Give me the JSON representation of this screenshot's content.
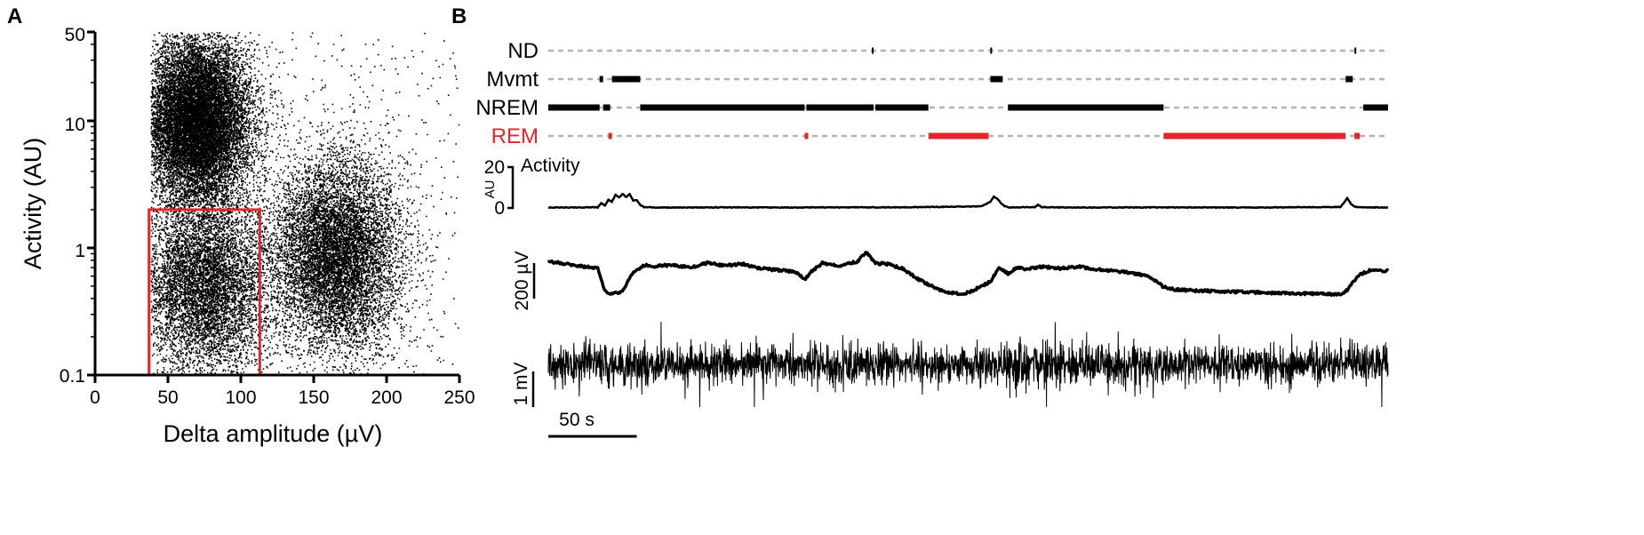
{
  "colors": {
    "ink": "#000000",
    "red": "#e3262b",
    "dash": "#b3b3b3"
  },
  "panel_a": {
    "label": "A",
    "chart_data": {
      "type": "scatter",
      "xlabel": "Delta amplitude (µV)",
      "ylabel": "Activity (AU)",
      "xlim": [
        0,
        250
      ],
      "ylim": [
        0.1,
        50
      ],
      "yscale": "log",
      "xticks": [
        0,
        50,
        100,
        150,
        200,
        250
      ],
      "yticks": [
        0.1,
        1,
        10,
        50
      ],
      "ytick_labels": [
        "0.1",
        "1",
        "10",
        "50"
      ],
      "clusters": [
        {
          "x_center": 70,
          "x_sd": 18,
          "log10y_center": 1.0,
          "log10y_sd": 0.32,
          "weight": 0.48
        },
        {
          "x_center": 165,
          "x_sd": 22,
          "log10y_center": -0.05,
          "log10y_sd": 0.38,
          "weight": 0.3
        },
        {
          "x_center": 75,
          "x_sd": 22,
          "log10y_center": -0.3,
          "log10y_sd": 0.35,
          "weight": 0.22
        }
      ],
      "selection_box": {
        "x": [
          37,
          113
        ],
        "y": [
          0.1,
          2
        ]
      }
    }
  },
  "panel_b": {
    "label": "B",
    "chart_data": {
      "type": "line",
      "duration_s": 475,
      "hypnogram": [
        {
          "name": "ND",
          "bouts": [
            [
              183,
              184
            ],
            [
              250,
              251
            ],
            [
              456,
              457
            ]
          ]
        },
        {
          "name": "Mvmt",
          "bouts": [
            [
              29,
              31
            ],
            [
              36,
              52
            ],
            [
              250,
              257
            ],
            [
              451,
              455
            ]
          ]
        },
        {
          "name": "NREM",
          "bouts": [
            [
              0,
              29
            ],
            [
              31,
              35
            ],
            [
              52,
              145
            ],
            [
              146,
              184
            ],
            [
              185,
              215
            ],
            [
              260,
              348
            ],
            [
              461,
              475
            ]
          ]
        },
        {
          "name": "REM",
          "bouts": [
            [
              34,
              36
            ],
            [
              145,
              147
            ],
            [
              215,
              249
            ],
            [
              348,
              451
            ],
            [
              456,
              459
            ]
          ]
        }
      ],
      "activity": {
        "label": "Activity",
        "unit": "AU",
        "scale_max_label": "20",
        "scale_zero_label": "0",
        "ylim": [
          0,
          20
        ],
        "t": [
          0,
          28,
          30,
          32,
          34,
          36,
          38,
          40,
          42,
          44,
          46,
          48,
          50,
          52,
          54,
          60,
          100,
          145,
          150,
          200,
          245,
          250,
          252,
          254,
          256,
          258,
          260,
          275,
          277,
          279,
          300,
          350,
          400,
          448,
          450,
          452,
          454,
          456,
          460,
          475
        ],
        "values": [
          0.2,
          0.3,
          2.5,
          1.0,
          4.0,
          3.0,
          6.5,
          5.0,
          7.0,
          5.5,
          6.8,
          3.5,
          4.0,
          1.5,
          0.5,
          0.2,
          0.3,
          0.2,
          0.3,
          0.3,
          0.8,
          3.0,
          5.5,
          4.5,
          2.5,
          1.0,
          0.3,
          0.4,
          1.5,
          0.4,
          0.2,
          0.3,
          0.2,
          0.5,
          2.5,
          4.8,
          2.0,
          0.6,
          0.3,
          0.2
        ]
      },
      "delta": {
        "scale_label": "200 µV",
        "ylim": [
          0,
          450
        ],
        "t": [
          0,
          10,
          20,
          28,
          32,
          36,
          42,
          48,
          55,
          60,
          70,
          80,
          90,
          100,
          110,
          120,
          130,
          140,
          145,
          148,
          155,
          165,
          175,
          180,
          183,
          186,
          190,
          200,
          210,
          220,
          225,
          230,
          235,
          240,
          250,
          255,
          260,
          265,
          270,
          280,
          290,
          300,
          310,
          320,
          330,
          340,
          348,
          355,
          380,
          400,
          420,
          440,
          448,
          452,
          458,
          465,
          475
        ],
        "values": [
          420,
          405,
          390,
          380,
          250,
          235,
          250,
          360,
          400,
          390,
          400,
          385,
          410,
          395,
          405,
          380,
          370,
          360,
          315,
          355,
          410,
          395,
          420,
          470,
          430,
          405,
          410,
          380,
          315,
          265,
          245,
          240,
          235,
          255,
          305,
          380,
          350,
          385,
          375,
          390,
          380,
          390,
          375,
          365,
          355,
          335,
          275,
          260,
          250,
          245,
          240,
          235,
          232,
          260,
          340,
          370,
          365
        ]
      },
      "eeg": {
        "scale_label": "1 mV",
        "ylim": [
          -1.0,
          1.0
        ]
      },
      "time_scale": {
        "label": "50 s",
        "seconds": 50
      }
    }
  }
}
